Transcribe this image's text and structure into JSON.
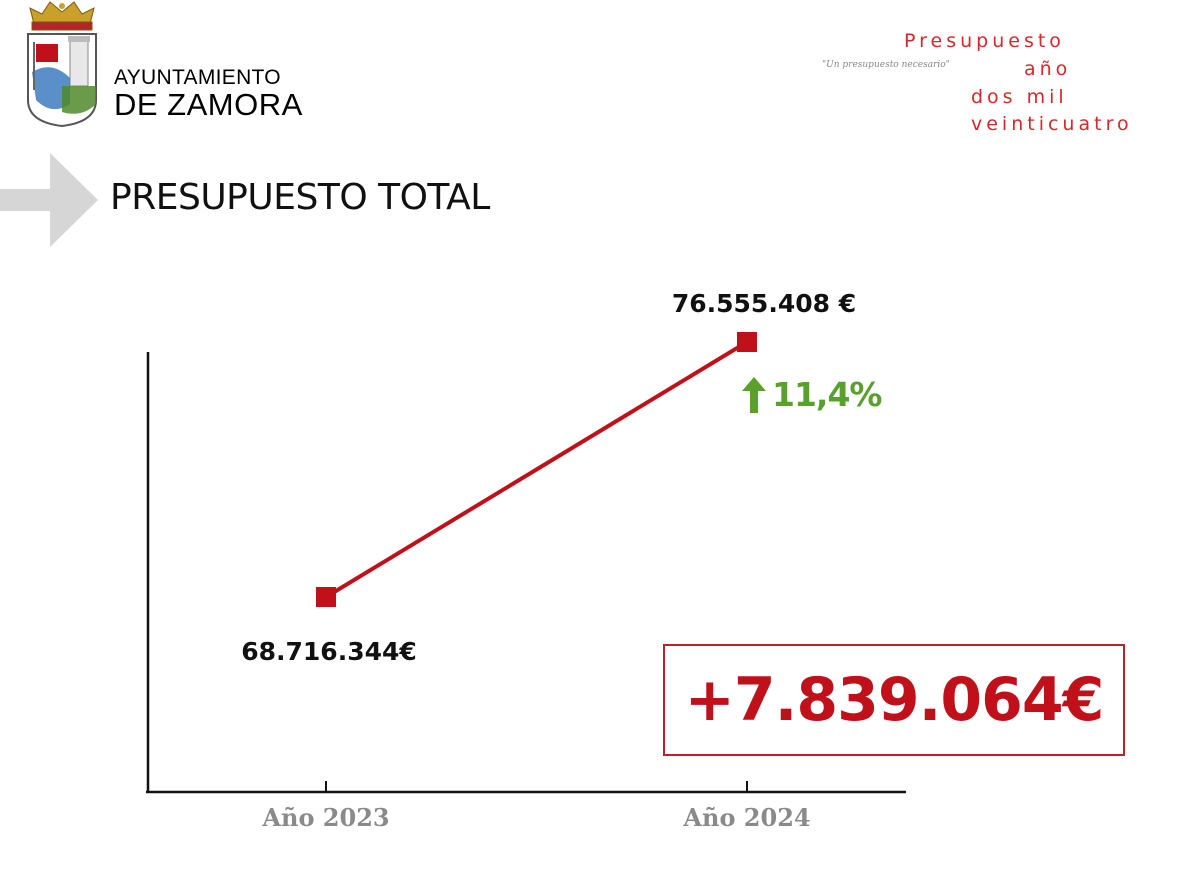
{
  "header": {
    "org_line1": "AYUNTAMIENTO",
    "org_line2": "DE ZAMORA",
    "budget_line1": "Presupuesto",
    "budget_line2": "año",
    "budget_line3": "dos mil",
    "budget_line4": "veinticuatro",
    "motto": "\"Un presupuesto necesario\""
  },
  "page_title": "PRESUPUESTO TOTAL",
  "colors": {
    "line": "#c0111b",
    "accent_red": "#d9262b",
    "increase_green": "#5aa02c",
    "axis_label_gray": "#8a8a8a"
  },
  "chart_data": {
    "type": "line",
    "categories": [
      "Año 2023",
      "Año 2024"
    ],
    "values": [
      68716344,
      76555408
    ],
    "data_labels": [
      "68.716.344€",
      "76.555.408 €"
    ],
    "title": "",
    "xlabel": "",
    "ylabel": "",
    "grid": false,
    "annotations": {
      "change_percent_label": "11,4%",
      "change_absolute_label": "+7.839.064€"
    }
  }
}
